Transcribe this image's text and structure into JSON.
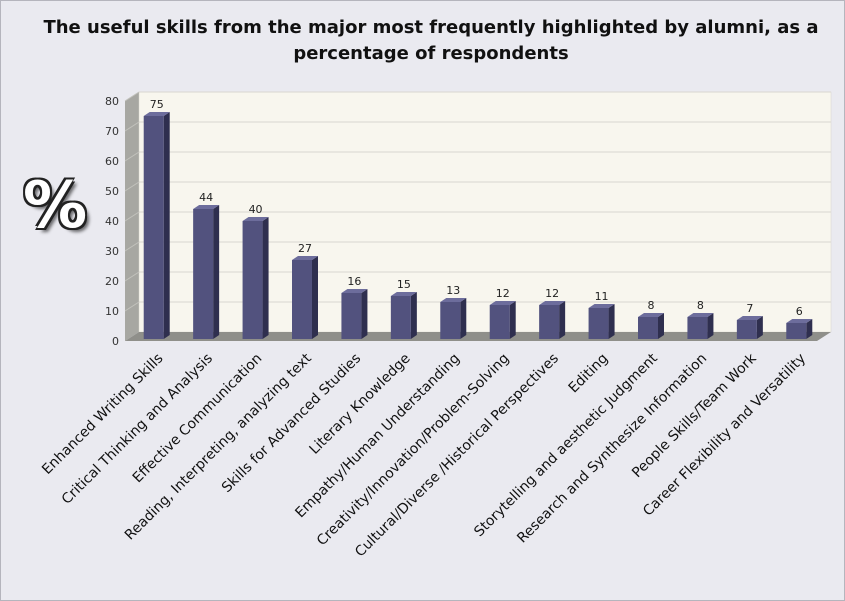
{
  "chart_data": {
    "type": "bar",
    "title": "The useful skills from the major most frequently highlighted by alumni, as a percentage of respondents",
    "ylabel": "%",
    "xlabel": "",
    "ylim": [
      0,
      80
    ],
    "yticks": [
      0,
      10,
      20,
      30,
      40,
      50,
      60,
      70,
      80
    ],
    "grid": true,
    "legend": "none",
    "categories": [
      "Enhanced Writing Skills",
      "Critical Thinking and Analysis",
      "Effective Communication",
      "Reading, Interpreting, analyzing text",
      "Skills for Advanced Studies",
      "Literary Knowledge",
      "Empathy/Human Understanding",
      "Creativity/Innovation/Problem-Solving",
      "Cultural/Diverse /Historical Perspectives",
      "Editing",
      "Storytelling and aesthetic Judgment",
      "Research and Synthesize Information",
      "People Skills/Team Work",
      "Career Flexibility and Versatility"
    ],
    "values": [
      75,
      44,
      40,
      27,
      16,
      15,
      13,
      12,
      12,
      11,
      8,
      8,
      7,
      6
    ],
    "colors": {
      "bar_front": "#52527e",
      "bar_side": "#2f2f4f",
      "bar_top": "#6d6d9c",
      "plot_back": "#f8f6ee",
      "plot_wall": "#a7a7a2",
      "floor": "#8f8f8a"
    }
  }
}
